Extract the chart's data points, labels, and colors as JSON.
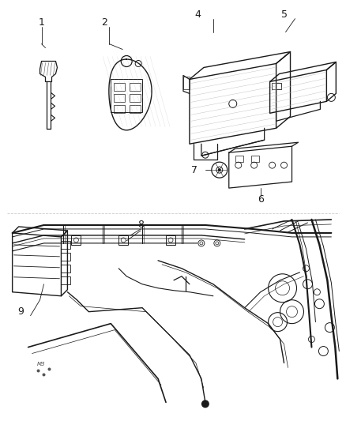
{
  "bg_color": "#ffffff",
  "line_color": "#1a1a1a",
  "gray_color": "#888888",
  "fig_width": 4.38,
  "fig_height": 5.33,
  "dpi": 100
}
